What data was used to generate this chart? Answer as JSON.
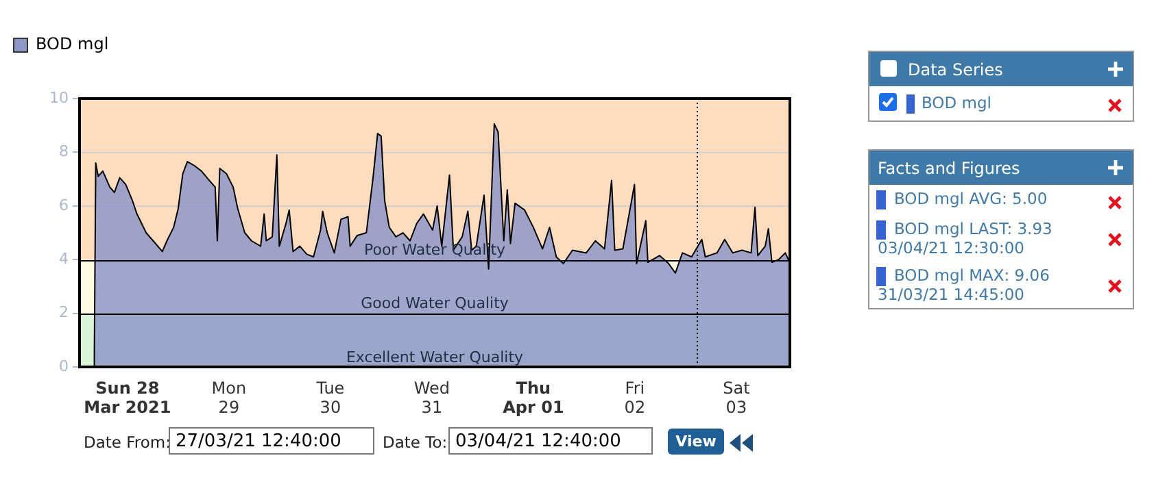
{
  "chart_data": {
    "type": "area",
    "x": [
      "2021-03-27T16:00",
      "2021-03-27T16:10",
      "2021-03-27T16:30",
      "2021-03-27T17:05",
      "2021-03-27T18:10",
      "2021-03-27T19:50",
      "2021-03-27T20:55",
      "2021-03-27T22:10",
      "2021-03-27T23:35",
      "2021-03-28T01:10",
      "2021-03-28T02:15",
      "2021-03-28T03:20",
      "2021-03-28T04:25",
      "2021-03-28T06:05",
      "2021-03-28T08:15",
      "2021-03-28T09:20",
      "2021-03-28T10:55",
      "2021-03-28T12:00",
      "2021-03-28T13:05",
      "2021-03-28T14:10",
      "2021-03-28T15:50",
      "2021-03-28T17:30",
      "2021-03-28T19:05",
      "2021-03-28T20:45",
      "2021-03-28T21:15",
      "2021-03-28T21:50",
      "2021-03-28T23:25",
      "2021-03-29T01:00",
      "2021-03-29T02:05",
      "2021-03-29T03:45",
      "2021-03-29T05:20",
      "2021-03-29T07:30",
      "2021-03-29T08:20",
      "2021-03-29T08:50",
      "2021-03-29T10:15",
      "2021-03-29T11:20",
      "2021-03-29T11:55",
      "2021-03-29T13:30",
      "2021-03-29T14:15",
      "2021-03-29T15:10",
      "2021-03-29T16:45",
      "2021-03-29T18:25",
      "2021-03-29T20:00",
      "2021-03-29T21:40",
      "2021-03-29T22:10",
      "2021-03-29T23:15",
      "2021-03-30T00:55",
      "2021-03-30T02:30",
      "2021-03-30T04:10",
      "2021-03-30T04:40",
      "2021-03-30T06:20",
      "2021-03-30T08:30",
      "2021-03-30T10:05",
      "2021-03-30T11:10",
      "2021-03-30T12:00",
      "2021-03-30T12:50",
      "2021-03-30T13:55",
      "2021-03-30T15:30",
      "2021-03-30T17:10",
      "2021-03-30T18:50",
      "2021-03-30T20:25",
      "2021-03-30T22:00",
      "2021-03-31T00:10",
      "2021-03-31T01:15",
      "2021-03-31T02:20",
      "2021-03-31T04:10",
      "2021-03-31T05:05",
      "2021-03-31T07:10",
      "2021-03-31T08:30",
      "2021-03-31T09:25",
      "2021-03-31T10:30",
      "2021-03-31T12:20",
      "2021-03-31T13:25",
      "2021-03-31T14:45",
      "2021-03-31T15:40",
      "2021-03-31T17:00",
      "2021-03-31T17:50",
      "2021-03-31T18:35",
      "2021-03-31T19:40",
      "2021-03-31T21:55",
      "2021-04-01T00:00",
      "2021-04-01T02:10",
      "2021-04-01T03:50",
      "2021-04-01T05:25",
      "2021-04-01T07:05",
      "2021-04-01T09:15",
      "2021-04-01T12:30",
      "2021-04-01T14:40",
      "2021-04-01T16:50",
      "2021-04-01T18:30",
      "2021-04-01T19:15",
      "2021-04-01T21:10",
      "2021-04-01T23:55",
      "2021-04-02T00:25",
      "2021-04-02T02:35",
      "2021-04-02T03:05",
      "2021-04-02T05:50",
      "2021-04-02T08:00",
      "2021-04-02T09:35",
      "2021-04-02T11:15",
      "2021-04-02T13:25",
      "2021-04-02T15:50",
      "2021-04-02T16:40",
      "2021-04-02T19:25",
      "2021-04-02T21:15",
      "2021-04-02T23:10",
      "2021-04-03T01:20",
      "2021-04-03T03:30",
      "2021-04-03T04:25",
      "2021-04-03T05:05",
      "2021-04-03T06:50",
      "2021-04-03T07:35",
      "2021-04-03T08:25",
      "2021-04-03T10:00",
      "2021-04-03T11:35",
      "2021-04-03T12:30"
    ],
    "series": [
      {
        "name": "BOD mgl",
        "color": "#8f97c8",
        "values": [
          0,
          0.5,
          7.6,
          7.1,
          7.3,
          6.7,
          6.5,
          7.05,
          6.8,
          6.2,
          5.7,
          5.35,
          5.0,
          4.7,
          4.3,
          4.7,
          5.2,
          5.9,
          7.2,
          7.65,
          7.5,
          7.3,
          7.0,
          6.7,
          4.7,
          7.4,
          7.2,
          6.7,
          5.9,
          5.0,
          4.7,
          4.5,
          5.7,
          4.7,
          4.85,
          7.9,
          4.5,
          5.35,
          5.85,
          4.3,
          4.5,
          4.2,
          4.1,
          5.1,
          5.8,
          5.0,
          4.25,
          5.5,
          5.6,
          4.5,
          4.9,
          5.0,
          7.05,
          8.7,
          8.6,
          6.2,
          5.2,
          4.85,
          5.0,
          4.7,
          5.35,
          5.7,
          5.1,
          6.0,
          4.5,
          7.15,
          4.35,
          4.85,
          5.8,
          4.35,
          4.5,
          6.4,
          3.65,
          9.06,
          8.75,
          4.7,
          6.6,
          4.6,
          6.1,
          5.85,
          5.2,
          4.4,
          5.2,
          4.1,
          3.85,
          4.35,
          4.25,
          4.7,
          4.4,
          6.95,
          4.35,
          4.4,
          6.8,
          3.85,
          5.45,
          3.9,
          4.15,
          3.85,
          3.5,
          4.25,
          4.1,
          4.75,
          4.1,
          4.25,
          4.75,
          4.25,
          4.35,
          4.25,
          5.95,
          4.15,
          4.5,
          5.15,
          3.9,
          4.0,
          4.25,
          3.93
        ]
      }
    ],
    "xlim": [
      "2021-03-27T12:40",
      "2021-04-03T12:40"
    ],
    "xticks": [
      {
        "value": "2021-03-28",
        "label": "Sun 28\nMar 2021"
      },
      {
        "value": "2021-03-29",
        "label": "Mon\n29"
      },
      {
        "value": "2021-03-30",
        "label": "Tue\n30"
      },
      {
        "value": "2021-03-31",
        "label": "Wed\n31"
      },
      {
        "value": "2021-04-01",
        "label": "Thu\nApr 01"
      },
      {
        "value": "2021-04-02",
        "label": "Fri\n02"
      },
      {
        "value": "2021-04-03",
        "label": "Sat\n03"
      }
    ],
    "ylim": [
      0,
      10
    ],
    "yticks": [
      0,
      2,
      4,
      6,
      8,
      10
    ],
    "grid": "y",
    "legend": "top left",
    "bands": [
      {
        "axis": "y",
        "from": 0,
        "to": 2,
        "label": "Excellent Water Quality",
        "color": "#d8f5d8"
      },
      {
        "axis": "y",
        "from": 2,
        "to": 4,
        "label": "Good Water Quality",
        "color": "#fefbe0"
      },
      {
        "axis": "y",
        "from": 4,
        "to": 10,
        "label": "Poor Water Quality",
        "color": "#fddcc0"
      }
    ],
    "ref_lines": [
      {
        "axis": "x",
        "value": "2021-04-02T14:40",
        "line_style": "dotted",
        "color": "#000000"
      }
    ],
    "annotations": [
      "Data Series",
      "BOD mgl",
      "Facts and Figures",
      "BOD mgl AVG: 5.00",
      "BOD mgl LAST: 3.93",
      "03/04/21 12:30:00",
      "BOD mgl MAX: 9.06",
      "31/03/21 14:45:00",
      "Date From:",
      "27/03/21 12:40:00",
      "Date To:",
      "03/04/21 12:40:00",
      "View"
    ]
  }
}
